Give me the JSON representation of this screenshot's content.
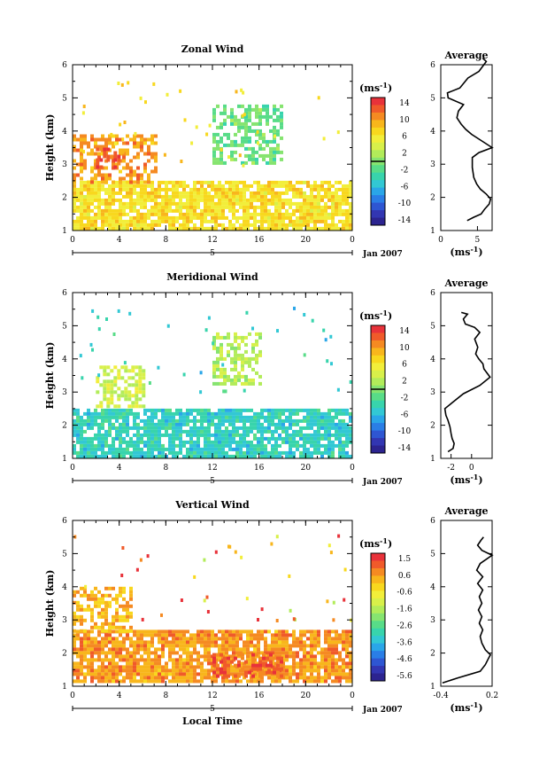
{
  "panels": [
    {
      "key": "zonal",
      "title": "Zonal Wind",
      "ylabel": "Height (km)",
      "yticks": [
        1,
        2,
        3,
        4,
        5,
        6
      ],
      "xticks": [
        "0",
        "4",
        "8",
        "12",
        "16",
        "20",
        "0"
      ],
      "date_mark": "5",
      "date_label": "Jan 2007",
      "xlabel": "",
      "colorbar": {
        "unit": "(ms",
        "unit_sup": "-1",
        "unit_close": ")",
        "labels": [
          "14",
          "10",
          "6",
          "2",
          "-2",
          "-6",
          "-10",
          "-14"
        ],
        "colors": [
          "#e8323a",
          "#f05a2a",
          "#f58a22",
          "#f8b61c",
          "#f8d81e",
          "#f2ee3a",
          "#d8f04a",
          "#b2ec5a",
          "#86e470",
          "#58dc88",
          "#38d4ac",
          "#32c8d4",
          "#2aa6e8",
          "#2a7ee6",
          "#2e56d2",
          "#3236b2",
          "#2c2490"
        ],
        "zero_line": true
      },
      "average": {
        "title": "Average",
        "unit": "(ms",
        "unit_sup": "-1",
        "unit_close": ")",
        "xticks": [
          "0",
          "5"
        ],
        "xlim": [
          0,
          7
        ],
        "profile": [
          [
            3.6,
            1.3
          ],
          [
            4.5,
            1.4
          ],
          [
            5.5,
            1.5
          ],
          [
            6.0,
            1.65
          ],
          [
            6.6,
            1.8
          ],
          [
            6.8,
            1.95
          ],
          [
            6.2,
            2.1
          ],
          [
            5.4,
            2.25
          ],
          [
            4.9,
            2.4
          ],
          [
            4.5,
            2.6
          ],
          [
            4.3,
            2.9
          ],
          [
            4.3,
            3.2
          ],
          [
            5.2,
            3.35
          ],
          [
            7.0,
            3.5
          ],
          [
            5.6,
            3.7
          ],
          [
            4.2,
            3.9
          ],
          [
            3.4,
            4.05
          ],
          [
            2.8,
            4.2
          ],
          [
            2.2,
            4.4
          ],
          [
            2.4,
            4.6
          ],
          [
            3.1,
            4.8
          ],
          [
            1.0,
            5.0
          ],
          [
            0.9,
            5.15
          ],
          [
            2.6,
            5.3
          ],
          [
            3.7,
            5.6
          ],
          [
            5.2,
            5.8
          ],
          [
            6.2,
            6.1
          ],
          [
            5.7,
            6.2
          ]
        ]
      }
    },
    {
      "key": "meridional",
      "title": "Meridional Wind",
      "ylabel": "Height (km)",
      "yticks": [
        1,
        2,
        3,
        4,
        5,
        6
      ],
      "xticks": [
        "0",
        "4",
        "8",
        "12",
        "16",
        "20",
        "0"
      ],
      "date_mark": "5",
      "date_label": "Jan 2007",
      "xlabel": "",
      "colorbar": {
        "unit": "(ms",
        "unit_sup": "-1",
        "unit_close": ")",
        "labels": [
          "14",
          "10",
          "6",
          "2",
          "-2",
          "-6",
          "-10",
          "-14"
        ],
        "colors": [
          "#e8323a",
          "#f05a2a",
          "#f58a22",
          "#f8b61c",
          "#f8d81e",
          "#f2ee3a",
          "#d8f04a",
          "#b2ec5a",
          "#86e470",
          "#58dc88",
          "#38d4ac",
          "#32c8d4",
          "#2aa6e8",
          "#2a7ee6",
          "#2e56d2",
          "#3236b2",
          "#2c2490"
        ],
        "zero_line": true
      },
      "average": {
        "title": "Average",
        "unit": "(ms",
        "unit_sup": "-1",
        "unit_close": ")",
        "xticks": [
          "-2",
          "0"
        ],
        "xlim": [
          -3,
          2
        ],
        "profile": [
          [
            -2.3,
            1.2
          ],
          [
            -1.8,
            1.3
          ],
          [
            -1.7,
            1.45
          ],
          [
            -1.9,
            1.6
          ],
          [
            -2.0,
            1.75
          ],
          [
            -2.1,
            1.95
          ],
          [
            -2.3,
            2.15
          ],
          [
            -2.5,
            2.3
          ],
          [
            -2.6,
            2.5
          ],
          [
            -1.8,
            2.7
          ],
          [
            -0.8,
            2.95
          ],
          [
            0.8,
            3.2
          ],
          [
            1.8,
            3.45
          ],
          [
            1.2,
            3.7
          ],
          [
            1.1,
            3.85
          ],
          [
            0.7,
            4.0
          ],
          [
            0.4,
            4.15
          ],
          [
            0.6,
            4.35
          ],
          [
            0.3,
            4.6
          ],
          [
            0.8,
            4.8
          ],
          [
            0.3,
            4.95
          ],
          [
            -0.6,
            5.05
          ],
          [
            -0.8,
            5.2
          ],
          [
            -0.4,
            5.35
          ],
          [
            -1.0,
            5.4
          ]
        ]
      }
    },
    {
      "key": "vertical",
      "title": "Vertical Wind",
      "ylabel": "Height (km)",
      "yticks": [
        1,
        2,
        3,
        4,
        5,
        6
      ],
      "xticks": [
        "0",
        "4",
        "8",
        "12",
        "16",
        "20",
        "0"
      ],
      "date_mark": "5",
      "date_label": "Jan 2007",
      "xlabel": "Local Time",
      "colorbar": {
        "unit": "(ms",
        "unit_sup": "-1",
        "unit_close": ")",
        "labels": [
          "1.5",
          "0.6",
          "-0.6",
          "-1.6",
          "-2.6",
          "-3.6",
          "-4.6",
          "-5.6"
        ],
        "colors": [
          "#e8323a",
          "#f05a2a",
          "#f58a22",
          "#f8b61c",
          "#f8d81e",
          "#f2ee3a",
          "#d8f04a",
          "#b2ec5a",
          "#86e470",
          "#58dc88",
          "#38d4ac",
          "#32c8d4",
          "#2aa6e8",
          "#2a7ee6",
          "#2e56d2",
          "#3236b2",
          "#2c2490"
        ],
        "zero_line": false
      },
      "average": {
        "title": "Average",
        "unit": "(ms",
        "unit_sup": "-1",
        "unit_close": ")",
        "xticks": [
          "-0.4",
          "0.2"
        ],
        "xlim": [
          -0.4,
          0.2
        ],
        "profile": [
          [
            -0.38,
            1.1
          ],
          [
            -0.2,
            1.25
          ],
          [
            0.06,
            1.45
          ],
          [
            0.12,
            1.65
          ],
          [
            0.16,
            1.85
          ],
          [
            0.18,
            1.95
          ],
          [
            0.12,
            2.1
          ],
          [
            0.08,
            2.3
          ],
          [
            0.06,
            2.5
          ],
          [
            0.09,
            2.7
          ],
          [
            0.05,
            2.9
          ],
          [
            0.08,
            3.1
          ],
          [
            0.04,
            3.3
          ],
          [
            0.08,
            3.5
          ],
          [
            0.05,
            3.7
          ],
          [
            0.09,
            3.9
          ],
          [
            0.03,
            4.1
          ],
          [
            0.09,
            4.3
          ],
          [
            0.02,
            4.5
          ],
          [
            0.06,
            4.7
          ],
          [
            0.2,
            4.95
          ],
          [
            0.08,
            5.1
          ],
          [
            0.03,
            5.25
          ],
          [
            0.07,
            5.4
          ],
          [
            0.1,
            5.5
          ]
        ]
      }
    }
  ],
  "chart_data": [
    {
      "type": "heatmap",
      "title": "Zonal Wind",
      "ylabel": "Height (km)",
      "ylim": [
        1,
        6
      ],
      "xlim_hours": [
        0,
        24
      ],
      "date": "5 Jan 2007",
      "value_range": [
        -14,
        14
      ],
      "colorbar_ticks": [
        14,
        10,
        6,
        2,
        -2,
        -6,
        -10,
        -14
      ],
      "regions": [
        {
          "t0": 0,
          "t1": 24,
          "h0": 1.1,
          "h1": 2.5,
          "value": 6
        },
        {
          "t0": 0,
          "t1": 7,
          "h0": 2.5,
          "h1": 3.9,
          "value": 9
        },
        {
          "t0": 2,
          "t1": 4,
          "h0": 2.9,
          "h1": 3.5,
          "value": 12
        },
        {
          "t0": 12,
          "t1": 18,
          "h0": 3.0,
          "h1": 4.8,
          "value": -1
        }
      ]
    },
    {
      "type": "heatmap",
      "title": "Meridional Wind",
      "ylabel": "Height (km)",
      "ylim": [
        1,
        6
      ],
      "xlim_hours": [
        0,
        24
      ],
      "date": "5 Jan 2007",
      "value_range": [
        -14,
        14
      ],
      "colorbar_ticks": [
        14,
        10,
        6,
        2,
        -2,
        -6,
        -10,
        -14
      ],
      "regions": [
        {
          "t0": 0,
          "t1": 24,
          "h0": 1.1,
          "h1": 2.5,
          "value": -4
        },
        {
          "t0": 2,
          "t1": 6,
          "h0": 2.6,
          "h1": 3.8,
          "value": 3
        },
        {
          "t0": 12,
          "t1": 16,
          "h0": 3.2,
          "h1": 4.8,
          "value": 2
        }
      ]
    },
    {
      "type": "heatmap",
      "title": "Vertical Wind",
      "ylabel": "Height (km)",
      "xlabel": "Local Time",
      "ylim": [
        1,
        6
      ],
      "xlim_hours": [
        0,
        24
      ],
      "date": "5 Jan 2007",
      "value_range": [
        -5.6,
        1.5
      ],
      "colorbar_ticks": [
        1.5,
        0.6,
        -0.6,
        -1.6,
        -2.6,
        -3.6,
        -4.6,
        -5.6
      ],
      "regions": [
        {
          "t0": 0,
          "t1": 24,
          "h0": 1.1,
          "h1": 2.7,
          "value": 0.3
        },
        {
          "t0": 0,
          "t1": 5,
          "h0": 2.7,
          "h1": 4.0,
          "value": 0.0
        },
        {
          "t0": 12,
          "t1": 18,
          "h0": 1.3,
          "h1": 2.0,
          "value": 0.9
        }
      ]
    },
    {
      "type": "line",
      "title": "Average",
      "panel": "Zonal Wind",
      "ylim": [
        1,
        6
      ],
      "xlim": [
        0,
        7
      ],
      "x_unit": "(ms-1)"
    },
    {
      "type": "line",
      "title": "Average",
      "panel": "Meridional Wind",
      "ylim": [
        1,
        6
      ],
      "xlim": [
        -3,
        2
      ],
      "x_unit": "(ms-1)"
    },
    {
      "type": "line",
      "title": "Average",
      "panel": "Vertical Wind",
      "ylim": [
        1,
        6
      ],
      "xlim": [
        -0.4,
        0.2
      ],
      "x_unit": "(ms-1)"
    }
  ]
}
